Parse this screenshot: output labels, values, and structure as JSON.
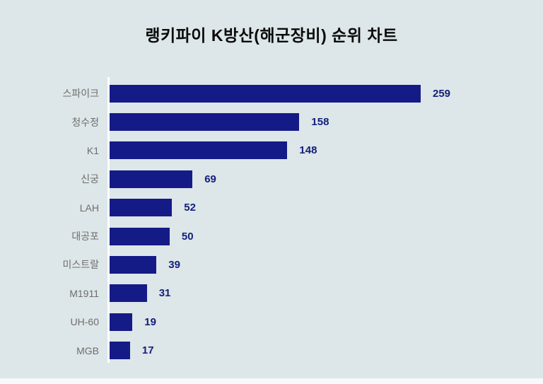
{
  "title": "랭키파이 K방산(해군장비) 순위 차트",
  "colors": {
    "background": "#dde6e8",
    "bar": "#141b87",
    "value_text": "#13207a",
    "label_text": "#6e6e6e",
    "title_text": "#0b0b0b",
    "axis_line": "#ffffff",
    "bottom_strip": "#f6fafa"
  },
  "chart_data": {
    "type": "bar",
    "orientation": "horizontal",
    "title": "랭키파이 K방산(해군장비) 순위 차트",
    "categories": [
      "스파이크",
      "청수정",
      "K1",
      "신궁",
      "LAH",
      "대공포",
      "미스트랄",
      "M1911",
      "UH-60",
      "MGB"
    ],
    "values": [
      259,
      158,
      148,
      69,
      52,
      50,
      39,
      31,
      19,
      17
    ],
    "xlim": [
      0,
      259
    ],
    "value_labels_shown": true,
    "grid": false,
    "legend": "none"
  }
}
